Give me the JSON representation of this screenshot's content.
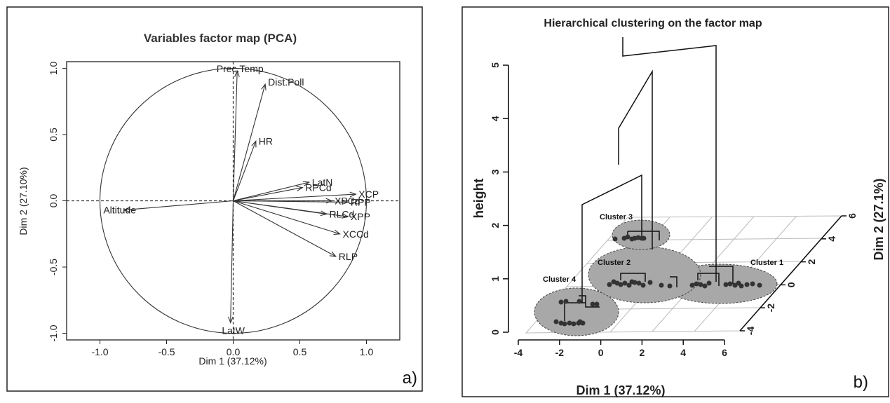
{
  "chart_data": [
    {
      "type": "scatter",
      "subtype": "pca-correlation-circle",
      "title": "Variables factor map (PCA)",
      "xlabel": "Dim 1 (37.12%)",
      "ylabel": "Dim 2 (27.10%)",
      "xlim": [
        -1.25,
        1.25
      ],
      "ylim": [
        -1.05,
        1.05
      ],
      "xticks": [
        -1.0,
        -0.5,
        0.0,
        0.5,
        1.0
      ],
      "yticks": [
        -1.0,
        -0.5,
        0.0,
        0.5,
        1.0
      ],
      "xtick_labels": [
        "-1.0",
        "-0.5",
        "0.0",
        "0.5",
        "1.0"
      ],
      "ytick_labels": [
        "-1.0",
        "-0.5",
        "0.0",
        "0.5",
        "1.0"
      ],
      "unit_circle": true,
      "reference_lines": "dashed at x=0 and y=0",
      "panel_label": "a)",
      "variables": [
        {
          "name": "Prec.Temp",
          "x": 0.03,
          "y": 0.98
        },
        {
          "name": "Dist.Poll",
          "x": 0.24,
          "y": 0.88
        },
        {
          "name": "HR",
          "x": 0.17,
          "y": 0.45
        },
        {
          "name": "LatN",
          "x": 0.57,
          "y": 0.14
        },
        {
          "name": "RPCd",
          "x": 0.52,
          "y": 0.1
        },
        {
          "name": "XCP",
          "x": 0.92,
          "y": 0.05
        },
        {
          "name": "XPCd",
          "x": 0.74,
          "y": 0.0
        },
        {
          "name": "RPP",
          "x": 0.86,
          "y": -0.01
        },
        {
          "name": "XPP",
          "x": 0.86,
          "y": -0.12
        },
        {
          "name": "RLCd",
          "x": 0.7,
          "y": -0.1
        },
        {
          "name": "XCCd",
          "x": 0.8,
          "y": -0.25
        },
        {
          "name": "RLP",
          "x": 0.77,
          "y": -0.42
        },
        {
          "name": "Altitude",
          "x": -0.82,
          "y": -0.07
        },
        {
          "name": "LatW",
          "x": -0.02,
          "y": -0.92
        }
      ]
    },
    {
      "type": "scatter",
      "subtype": "3d-hierarchical-clustering-on-factor-map",
      "title": "Hierarchical clustering on the factor map",
      "xlabel": "Dim 1 (37.12%)",
      "ylabel": "Dim 2 (27.1%)",
      "zlabel": "height",
      "xticks": [
        "-4",
        "-2",
        "0",
        "2",
        "4",
        "6"
      ],
      "yticks": [
        "-4",
        "-2",
        "0",
        "2",
        "4",
        "6"
      ],
      "zticks": [
        "0",
        "1",
        "2",
        "3",
        "4",
        "5"
      ],
      "panel_label": "b)",
      "clusters": [
        "Cluster 1",
        "Cluster 2",
        "Cluster 3",
        "Cluster 4"
      ]
    }
  ]
}
